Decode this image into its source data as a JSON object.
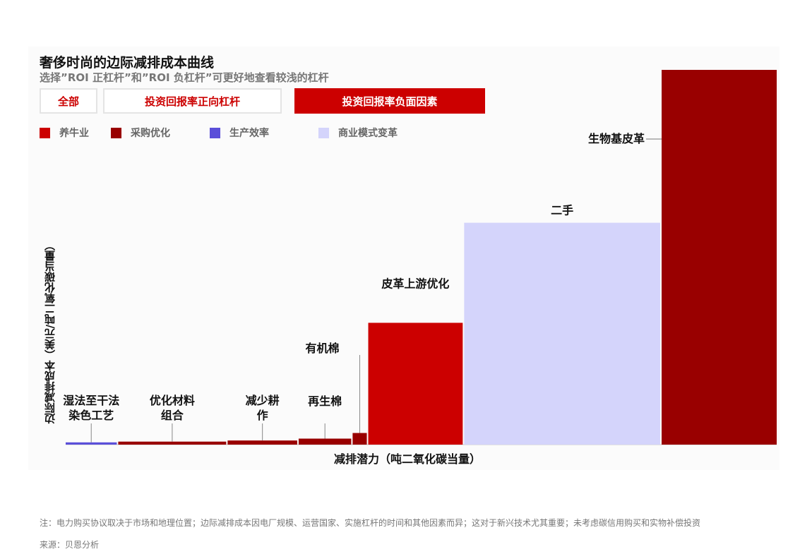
{
  "header": {
    "title": "奢侈时尚的边际减排成本曲线",
    "subtitle": "选择”ROI 正杠杆”和”ROI 负杠杆”可更好地查看较浅的杠杆"
  },
  "filters": {
    "all": "全部",
    "positive": "投资回报率正向杠杆",
    "negative": "投资回报率负面因素"
  },
  "legend": [
    {
      "label": "养牛业",
      "color": "#cc0000"
    },
    {
      "label": "采购优化",
      "color": "#990000"
    },
    {
      "label": "生产效率",
      "color": "#5b4fd9"
    },
    {
      "label": "商业模式变革",
      "color": "#d4d4fb"
    }
  ],
  "chart_data": {
    "type": "bar",
    "title": "奢侈时尚的边际减排成本曲线",
    "subtitle": "选择”ROI 正杠杆”和”ROI 负杠杆”可更好地查看较浅的杠杆",
    "xlabel": "减排潜力（吨二氧化碳当量）",
    "ylabel": "边际减排成本（美元/吨二氧化碳当量）",
    "grid": false,
    "legend_position": "top-left",
    "series": [
      {
        "label": "湿法至干法\n染色工艺",
        "category": "生产效率",
        "width": 7.2,
        "value": 0.6
      },
      {
        "label": "优化材料\n组合",
        "category": "采购优化",
        "width": 15.2,
        "value": 0.8
      },
      {
        "label": "减少耕\n作",
        "category": "采购优化",
        "width": 9.8,
        "value": 1.1
      },
      {
        "label": "再生棉",
        "category": "采购优化",
        "width": 7.4,
        "value": 1.6
      },
      {
        "label": "有机棉",
        "category": "采购优化",
        "width": 2.0,
        "value": 3.1
      },
      {
        "label": "皮革上游优化",
        "category": "养牛业",
        "width": 13.3,
        "value": 32.5
      },
      {
        "label": "二手",
        "category": "商业模式变革",
        "width": 27.6,
        "value": 59.2
      },
      {
        "label": "生物基皮革",
        "category": "采购优化",
        "width": 16.2,
        "value": 100
      }
    ]
  },
  "notes": {
    "footnote": "注：电力购买协议取决于市场和地理位置；边际减排成本因电厂规模、运营国家、实施杠杆的时间和其他因素而异；这对于新兴技术尤其重要；未考虑碳信用购买和实物补偿投资",
    "source": "来源：贝恩分析"
  }
}
